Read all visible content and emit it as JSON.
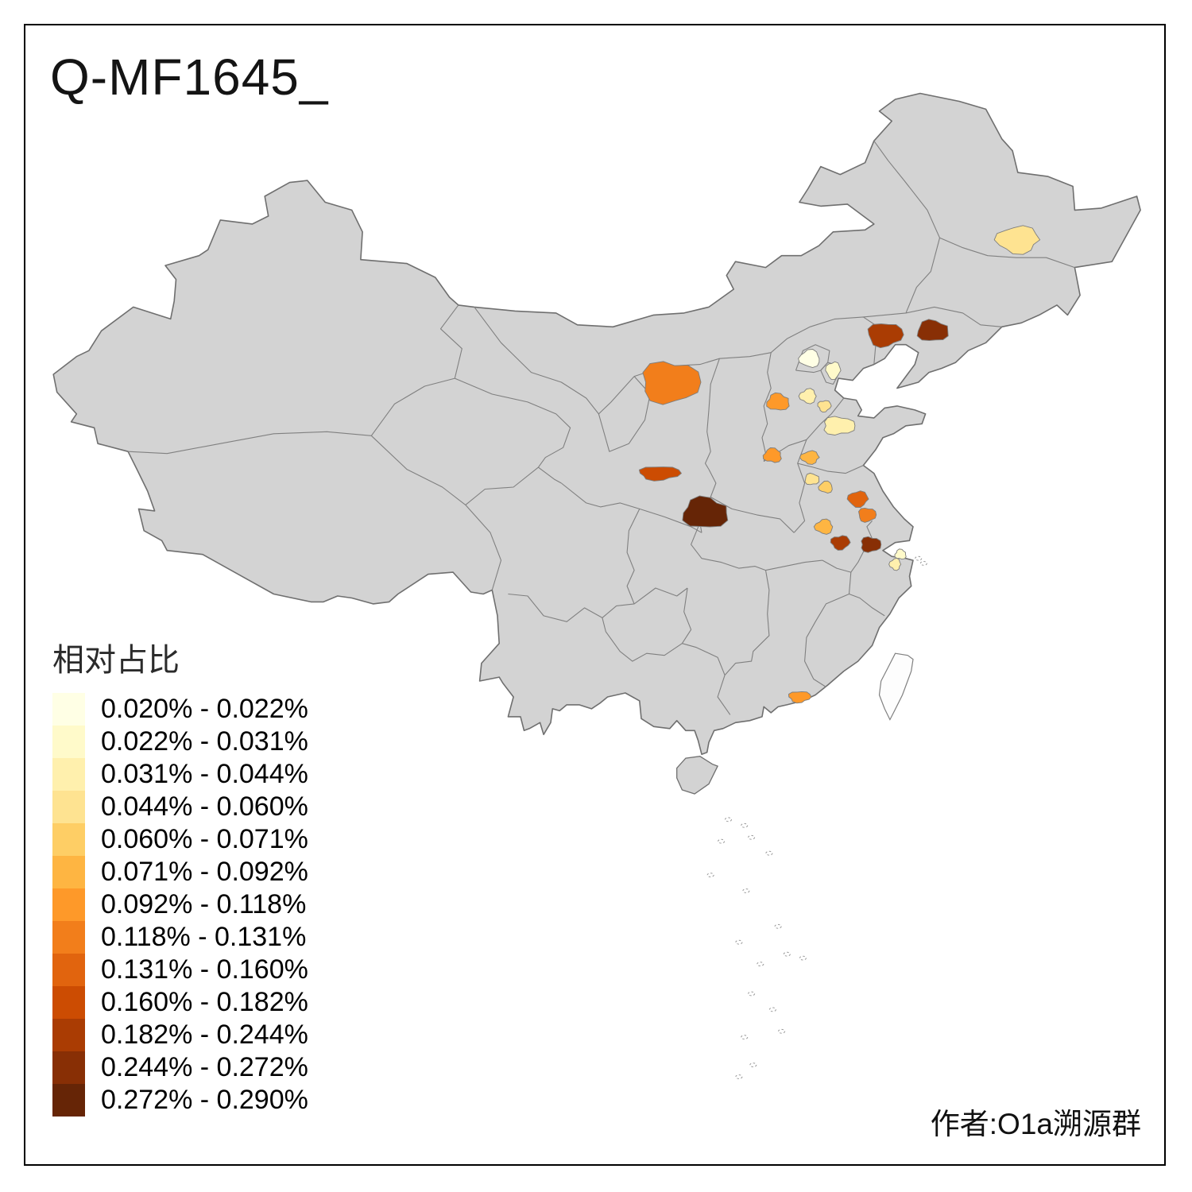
{
  "title": "Q-MF1645_",
  "legend": {
    "title": "相对占比",
    "items": [
      {
        "label": "0.020% - 0.022%",
        "color": "#FFFFE5"
      },
      {
        "label": "0.022% - 0.031%",
        "color": "#FFFACA"
      },
      {
        "label": "0.031% - 0.044%",
        "color": "#FFF0AD"
      },
      {
        "label": "0.044% - 0.060%",
        "color": "#FEE391"
      },
      {
        "label": "0.060% - 0.071%",
        "color": "#FECE65"
      },
      {
        "label": "0.071% - 0.092%",
        "color": "#FEB542"
      },
      {
        "label": "0.092% - 0.118%",
        "color": "#FE9929"
      },
      {
        "label": "0.118% - 0.131%",
        "color": "#F27E1B"
      },
      {
        "label": "0.131% - 0.160%",
        "color": "#E1640E"
      },
      {
        "label": "0.160% - 0.182%",
        "color": "#CC4C02"
      },
      {
        "label": "0.182% - 0.244%",
        "color": "#AA3C03"
      },
      {
        "label": "0.244% - 0.272%",
        "color": "#882F05"
      },
      {
        "label": "0.272% - 0.290%",
        "color": "#662506"
      }
    ]
  },
  "attribution": "作者:O1a溯源群",
  "map": {
    "base_fill": "#D3D3D3",
    "outline_color": "#6F6F6F",
    "province_border_color": "#808080",
    "island_fill": "#FDFDFD",
    "background": "#FFFFFF",
    "highlighted_regions": [
      {
        "color": "#FEE391",
        "range": "0.044% - 0.060%"
      },
      {
        "color": "#AA3C03",
        "range": "0.182% - 0.244%"
      },
      {
        "color": "#882F05",
        "range": "0.244% - 0.272%"
      },
      {
        "color": "#FFFFE5",
        "range": "0.020% - 0.022%"
      },
      {
        "color": "#FFFACA",
        "range": "0.022% - 0.031%"
      },
      {
        "color": "#F27E1B",
        "range": "0.118% - 0.131%"
      },
      {
        "color": "#FE9929",
        "range": "0.092% - 0.118%"
      },
      {
        "color": "#FFF0AD",
        "range": "0.031% - 0.044%"
      },
      {
        "color": "#FEE391",
        "range": "0.044% - 0.060%"
      },
      {
        "color": "#FFF0AD",
        "range": "0.031% - 0.044%"
      },
      {
        "color": "#FE9929",
        "range": "0.092% - 0.118%"
      },
      {
        "color": "#FEB542",
        "range": "0.071% - 0.092%"
      },
      {
        "color": "#CC4C02",
        "range": "0.160% - 0.182%"
      },
      {
        "color": "#FEE391",
        "range": "0.044% - 0.060%"
      },
      {
        "color": "#FECE65",
        "range": "0.060% - 0.071%"
      },
      {
        "color": "#E1640E",
        "range": "0.131% - 0.160%"
      },
      {
        "color": "#F27E1B",
        "range": "0.118% - 0.131%"
      },
      {
        "color": "#662506",
        "range": "0.272% - 0.290%"
      },
      {
        "color": "#FEB542",
        "range": "0.071% - 0.092%"
      },
      {
        "color": "#AA3C03",
        "range": "0.182% - 0.244%"
      },
      {
        "color": "#882F05",
        "range": "0.244% - 0.272%"
      },
      {
        "color": "#FFFACA",
        "range": "0.022% - 0.031%"
      },
      {
        "color": "#FFF0AD",
        "range": "0.031% - 0.044%"
      },
      {
        "color": "#FE9929",
        "range": "0.092% - 0.118%"
      }
    ]
  }
}
